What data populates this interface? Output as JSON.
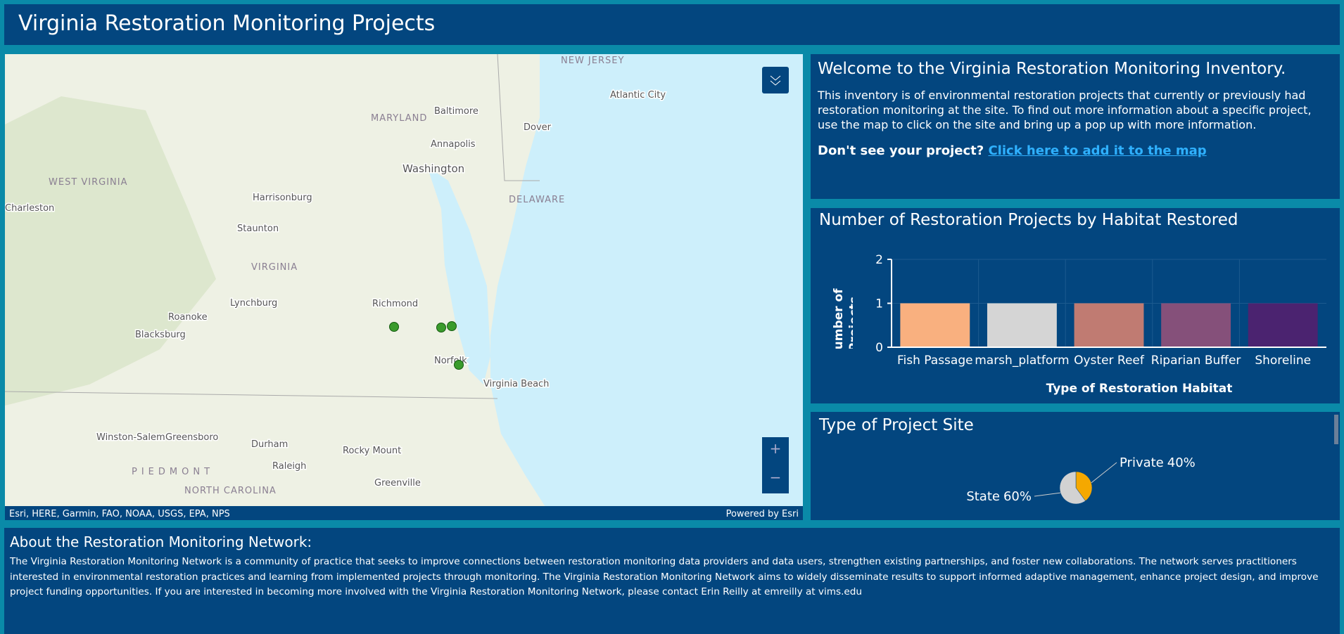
{
  "header": {
    "title": "Virginia Restoration Monitoring Projects"
  },
  "map": {
    "labels": [
      "NEW JERSEY",
      "Atlantic City",
      "Baltimore",
      "MARYLAND",
      "Dover",
      "Annapolis",
      "Washington",
      "WEST VIRGINIA",
      "DELAWARE",
      "Charleston",
      "Harrisonburg",
      "Staunton",
      "VIRGINIA",
      "Richmond",
      "Lynchburg",
      "Roanoke",
      "Blacksburg",
      "Norfolk",
      "Virginia Beach",
      "Winston-Salem",
      "Greensboro",
      "Durham",
      "Rocky Mount",
      "Raleigh",
      "PIEDMONT",
      "Greenville",
      "NORTH CAROLINA"
    ],
    "attribution": "Esri, HERE, Garmin, FAO, NOAA, USGS, EPA, NPS",
    "powered_by": "Powered by Esri",
    "zoom_in": "+",
    "zoom_out": "−"
  },
  "welcome": {
    "title": "Welcome to the Virginia Restoration Monitoring Inventory.",
    "text": "This inventory is of environmental restoration projects that currently or previously had restoration monitoring at the site. To find out more information about a specific project, use the map to click on the site and bring up a pop up with more information.",
    "prompt": "Don't see your project?",
    "link": "Click here to add it to the map"
  },
  "chart_data": [
    {
      "type": "bar",
      "title": "Number of Restoration Projects by Habitat Restored",
      "categories": [
        "Fish Passage",
        "marsh_platform",
        "Oyster Reef",
        "Riparian Buffer",
        "Shoreline"
      ],
      "values": [
        1,
        1,
        1,
        1,
        1
      ],
      "colors": [
        "#f9b07f",
        "#d5d5d5",
        "#c07b72",
        "#85507a",
        "#4b2370"
      ],
      "ylim": [
        0,
        2
      ],
      "yticks": [
        0,
        1,
        2
      ],
      "xlabel": "Type of Restoration Habitat",
      "ylabel": "Number of Projects",
      "grid": true
    },
    {
      "type": "pie",
      "title": "Type of Project Site",
      "categories": [
        "Private",
        "State"
      ],
      "values": [
        40,
        60
      ],
      "value_labels": [
        "40%",
        "60%"
      ],
      "colors": [
        "#f5a800",
        "#d2d2d2"
      ]
    }
  ],
  "about": {
    "title": "About the Restoration Monitoring Network:",
    "text": "The Virginia Restoration Monitoring Network is a community of practice that seeks to improve connections between restoration monitoring data providers and data users, strengthen existing partnerships, and foster new collaborations. The network serves practitioners interested in environmental restoration practices and learning from implemented projects through monitoring. The Virginia Restoration Monitoring Network aims to widely disseminate results to support informed adaptive management, enhance project design, and improve project funding opportunities. If you are interested in becoming more involved with the Virginia Restoration Monitoring Network, please contact Erin Reilly at emreilly at vims.edu"
  }
}
